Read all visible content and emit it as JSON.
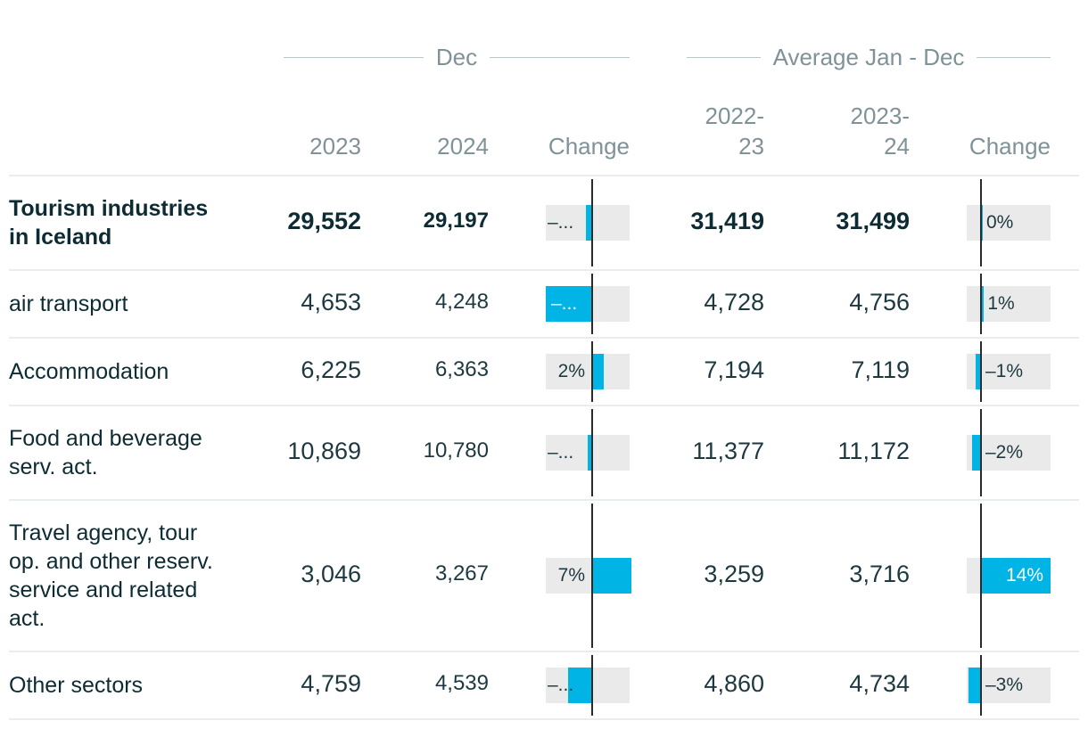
{
  "header": {
    "group_dec": "Dec",
    "group_avg": "Average Jan - Dec",
    "col_2023": "2023",
    "col_2024": "2024",
    "col_change_dec": "Change",
    "col_2022_23_a": "2022-",
    "col_2022_23_b": "23",
    "col_2023_24_a": "2023-",
    "col_2023_24_b": "24",
    "col_change_avg": "Change"
  },
  "chart_data": {
    "type": "table",
    "columns": [
      "Dec 2023",
      "Dec 2024",
      "Dec Change",
      "Avg 2022-23",
      "Avg 2023-24",
      "Avg Change"
    ],
    "rows": [
      {
        "label": "Tourism industries in Iceland",
        "dec_2023": "29,552",
        "dec_2024": "29,197",
        "dec_change": -1.2,
        "dec_change_label": "–...",
        "avg_2022_23": "31,419",
        "avg_2023_24": "31,499",
        "avg_change": 0.25,
        "avg_change_label": "0%"
      },
      {
        "label": "air transport",
        "dec_2023": "4,653",
        "dec_2024": "4,248",
        "dec_change": -8.7,
        "dec_change_label": "–...",
        "avg_2022_23": "4,728",
        "avg_2023_24": "4,756",
        "avg_change": 0.6,
        "avg_change_label": "1%"
      },
      {
        "label": "Accommodation",
        "dec_2023": "6,225",
        "dec_2024": "6,363",
        "dec_change": 2.2,
        "dec_change_label": "2%",
        "avg_2022_23": "7,194",
        "avg_2023_24": "7,119",
        "avg_change": -1.0,
        "avg_change_label": "–1%"
      },
      {
        "label": "Food and beverage serv. act.",
        "dec_2023": "10,869",
        "dec_2024": "10,780",
        "dec_change": -0.8,
        "dec_change_label": "–...",
        "avg_2022_23": "11,377",
        "avg_2023_24": "11,172",
        "avg_change": -1.8,
        "avg_change_label": "–2%"
      },
      {
        "label": "Travel agency, tour op. and other reserv. service and related act.",
        "dec_2023": "3,046",
        "dec_2024": "3,267",
        "dec_change": 7.3,
        "dec_change_label": "7%",
        "avg_2022_23": "3,259",
        "avg_2023_24": "3,716",
        "avg_change": 14.0,
        "avg_change_label": "14%"
      },
      {
        "label": "Other sectors",
        "dec_2023": "4,759",
        "dec_2024": "4,539",
        "dec_change": -4.6,
        "dec_change_label": "–...",
        "avg_2022_23": "4,860",
        "avg_2023_24": "4,734",
        "avg_change": -2.6,
        "avg_change_label": "–3%"
      }
    ]
  },
  "colors": {
    "bar": "#00b4e6",
    "bar_background": "#eaeaea",
    "header_text": "#7f9298",
    "body_text": "#0d2b33"
  }
}
